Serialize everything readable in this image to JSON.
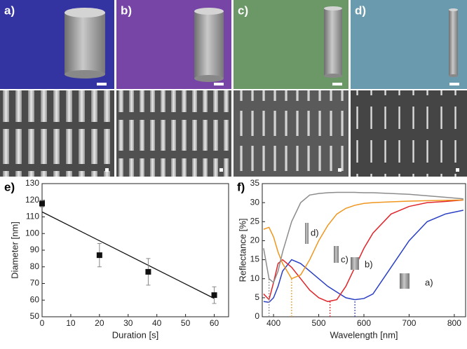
{
  "panels": [
    {
      "label": "a)"
    },
    {
      "label": "b)"
    },
    {
      "label": "c)"
    },
    {
      "label": "d)"
    }
  ],
  "chart_data": [
    {
      "type": "scatter",
      "label": "e)",
      "x_label": "Duration [s]",
      "y_label": "Diameter [nm]",
      "x": [
        0,
        20,
        37,
        60
      ],
      "values": [
        118,
        87,
        77,
        63
      ],
      "errors": [
        2,
        7,
        8,
        5
      ],
      "color": "#111111",
      "fit": {
        "x": [
          0,
          60
        ],
        "values": [
          113,
          61
        ]
      },
      "xlim": [
        0,
        65
      ],
      "ylim": [
        50,
        130
      ],
      "xticks": [
        0,
        10,
        20,
        30,
        40,
        50,
        60
      ],
      "yticks": [
        50,
        60,
        70,
        80,
        90,
        100,
        110,
        120,
        130
      ]
    },
    {
      "type": "line",
      "label": "f)",
      "x_label": "Wavelength [nm]",
      "y_label": "Reflectance [%]",
      "x": [
        378,
        390,
        400,
        410,
        420,
        440,
        460,
        480,
        500,
        520,
        540,
        560,
        580,
        600,
        620,
        660,
        700,
        740,
        780,
        820
      ],
      "series": [
        {
          "name": "a)",
          "color": "#2a3fc4",
          "minimum": 580,
          "values": [
            4,
            3.8,
            5,
            8,
            12,
            15,
            14,
            12,
            10,
            8,
            6.5,
            5,
            4.5,
            4.8,
            6,
            13,
            20,
            25,
            27,
            28
          ]
        },
        {
          "name": "b)",
          "color": "#e0262b",
          "minimum": 525,
          "values": [
            6,
            4.5,
            9,
            14,
            15,
            13,
            10,
            7,
            5,
            4,
            4.5,
            8,
            13,
            18,
            22,
            27,
            29,
            30,
            30.3,
            30.7
          ]
        },
        {
          "name": "c)",
          "color": "#f0961e",
          "minimum": 440,
          "values": [
            23,
            23.5,
            21,
            17,
            14,
            10,
            11,
            15,
            20,
            24,
            27,
            28.5,
            29.3,
            29.8,
            30,
            30.2,
            30.4,
            30.5,
            30.6,
            30.7
          ]
        },
        {
          "name": "d)",
          "color": "#8c8c8c",
          "minimum": 390,
          "values": [
            18,
            10,
            9,
            12,
            17,
            25,
            30,
            32,
            32.4,
            32.6,
            32.7,
            32.7,
            32.7,
            32.6,
            32.6,
            32.4,
            32.2,
            31.8,
            31.4,
            31
          ]
        }
      ],
      "xlim": [
        375,
        825
      ],
      "ylim": [
        0,
        35
      ],
      "xticks": [
        400,
        500,
        600,
        700,
        800
      ],
      "yticks": [
        0,
        5,
        10,
        15,
        20,
        25,
        30,
        35
      ]
    }
  ]
}
